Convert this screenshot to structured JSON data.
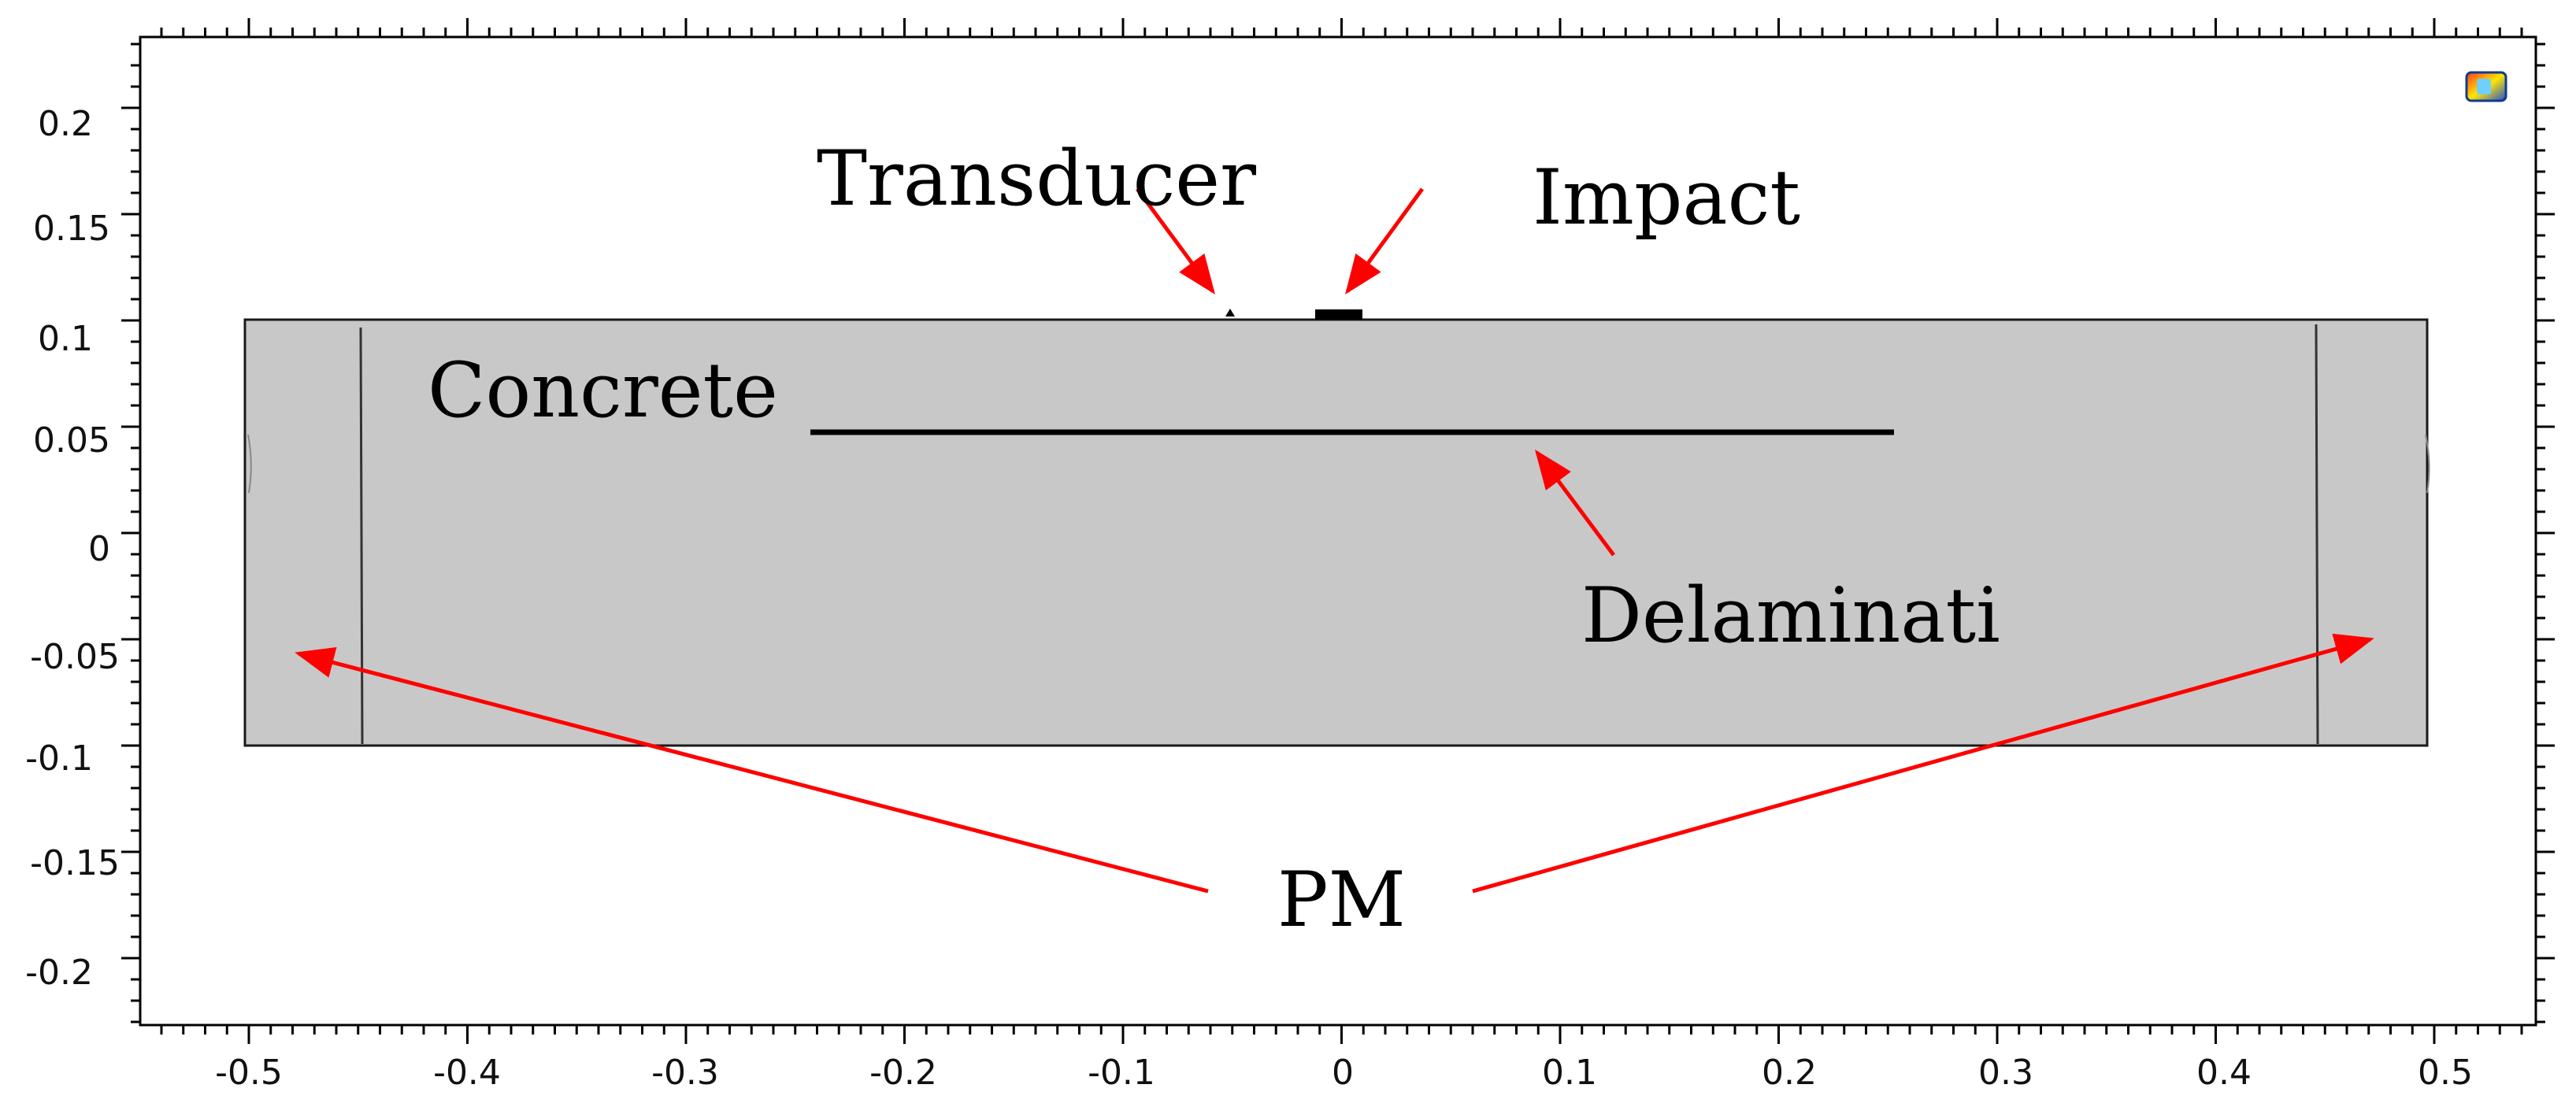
{
  "axes": {
    "x_ticks": [
      "-0.5",
      "-0.4",
      "-0.3",
      "-0.2",
      "-0.1",
      "0",
      "0.1",
      "0.2",
      "0.3",
      "0.4",
      "0.5"
    ],
    "y_ticks": [
      "0.2",
      "0.15",
      "0.1",
      "0.05",
      "0",
      "-0.05",
      "-0.1",
      "-0.15",
      "-0.2"
    ]
  },
  "labels": {
    "transducer": "Transducer",
    "impact": "Impact",
    "concrete": "Concrete",
    "delamination": "Delaminati",
    "pm": "PM"
  },
  "colors": {
    "concrete_fill": "#c8c8c8",
    "arrow": "#ff0000",
    "outline": "#1a1a1a"
  },
  "icons": {
    "corner": "color-legend-icon"
  }
}
